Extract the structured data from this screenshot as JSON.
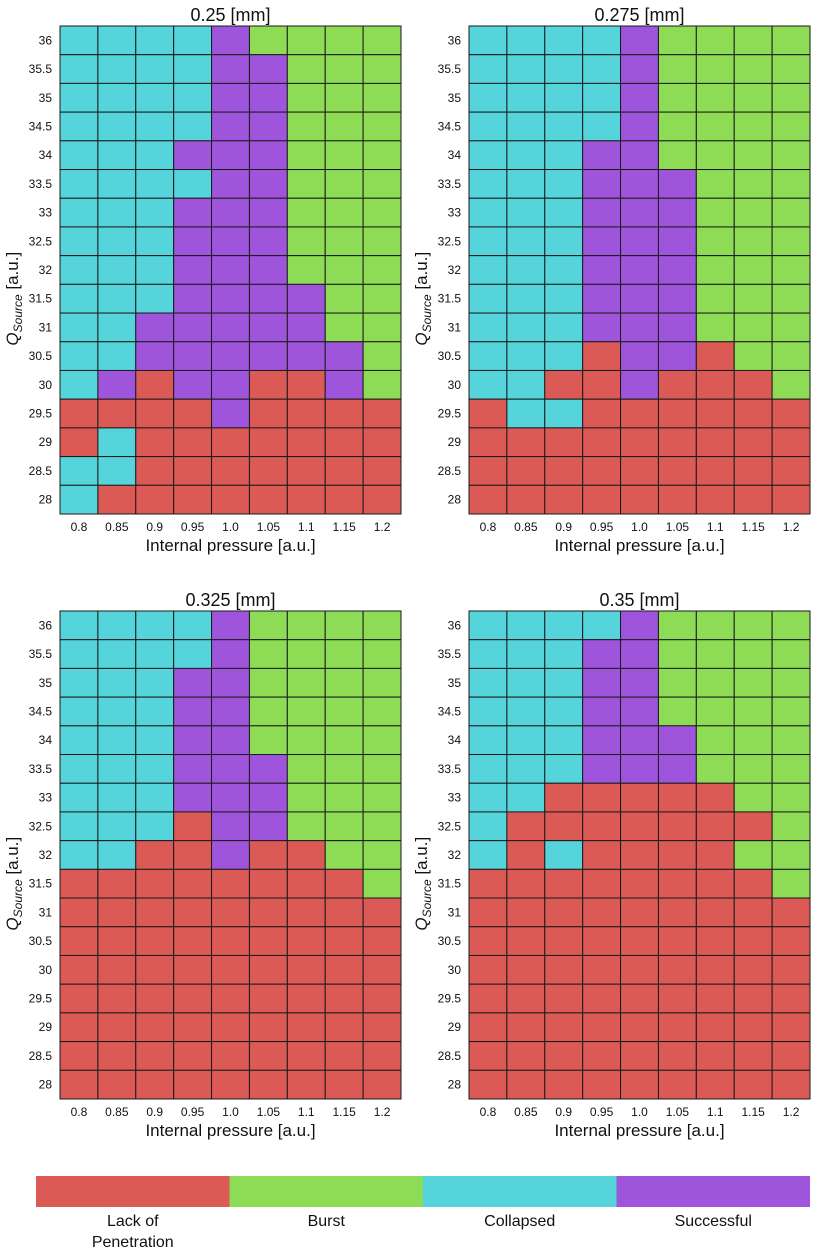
{
  "chart_data": [
    {
      "type": "heatmap",
      "title": "0.25 [mm]",
      "xlabel": "Internal pressure [a.u.]",
      "ylabel": "Q_Source [a.u.]",
      "ylabel_main": "Q",
      "ylabel_sub": "Source",
      "ylabel_unit": " [a.u.]",
      "x": [
        "0.8",
        "0.85",
        "0.9",
        "0.95",
        "1.0",
        "1.05",
        "1.1",
        "1.15",
        "1.2"
      ],
      "y": [
        "36",
        "35.5",
        "35",
        "34.5",
        "34",
        "33.5",
        "33",
        "32.5",
        "32",
        "31.5",
        "31",
        "30.5",
        "30",
        "29.5",
        "29",
        "28.5",
        "28"
      ],
      "z": [
        [
          "C",
          "C",
          "C",
          "C",
          "S",
          "B",
          "B",
          "B",
          "B"
        ],
        [
          "C",
          "C",
          "C",
          "C",
          "S",
          "S",
          "B",
          "B",
          "B"
        ],
        [
          "C",
          "C",
          "C",
          "C",
          "S",
          "S",
          "B",
          "B",
          "B"
        ],
        [
          "C",
          "C",
          "C",
          "C",
          "S",
          "S",
          "B",
          "B",
          "B"
        ],
        [
          "C",
          "C",
          "C",
          "S",
          "S",
          "S",
          "B",
          "B",
          "B"
        ],
        [
          "C",
          "C",
          "C",
          "C",
          "S",
          "S",
          "B",
          "B",
          "B"
        ],
        [
          "C",
          "C",
          "C",
          "S",
          "S",
          "S",
          "B",
          "B",
          "B"
        ],
        [
          "C",
          "C",
          "C",
          "S",
          "S",
          "S",
          "B",
          "B",
          "B"
        ],
        [
          "C",
          "C",
          "C",
          "S",
          "S",
          "S",
          "B",
          "B",
          "B"
        ],
        [
          "C",
          "C",
          "C",
          "S",
          "S",
          "S",
          "S",
          "B",
          "B"
        ],
        [
          "C",
          "C",
          "S",
          "S",
          "S",
          "S",
          "S",
          "B",
          "B"
        ],
        [
          "C",
          "C",
          "S",
          "S",
          "S",
          "S",
          "S",
          "S",
          "B"
        ],
        [
          "C",
          "S",
          "L",
          "S",
          "S",
          "L",
          "L",
          "S",
          "B"
        ],
        [
          "L",
          "L",
          "L",
          "L",
          "S",
          "L",
          "L",
          "L",
          "L"
        ],
        [
          "L",
          "C",
          "L",
          "L",
          "L",
          "L",
          "L",
          "L",
          "L"
        ],
        [
          "C",
          "C",
          "L",
          "L",
          "L",
          "L",
          "L",
          "L",
          "L"
        ],
        [
          "C",
          "L",
          "L",
          "L",
          "L",
          "L",
          "L",
          "L",
          "L"
        ]
      ]
    },
    {
      "type": "heatmap",
      "title": "0.275 [mm]",
      "xlabel": "Internal pressure [a.u.]",
      "ylabel": "Q_Source [a.u.]",
      "ylabel_main": "Q",
      "ylabel_sub": "Source",
      "ylabel_unit": " [a.u.]",
      "x": [
        "0.8",
        "0.85",
        "0.9",
        "0.95",
        "1.0",
        "1.05",
        "1.1",
        "1.15",
        "1.2"
      ],
      "y": [
        "36",
        "35.5",
        "35",
        "34.5",
        "34",
        "33.5",
        "33",
        "32.5",
        "32",
        "31.5",
        "31",
        "30.5",
        "30",
        "29.5",
        "29",
        "28.5",
        "28"
      ],
      "z": [
        [
          "C",
          "C",
          "C",
          "C",
          "S",
          "B",
          "B",
          "B",
          "B"
        ],
        [
          "C",
          "C",
          "C",
          "C",
          "S",
          "B",
          "B",
          "B",
          "B"
        ],
        [
          "C",
          "C",
          "C",
          "C",
          "S",
          "B",
          "B",
          "B",
          "B"
        ],
        [
          "C",
          "C",
          "C",
          "C",
          "S",
          "B",
          "B",
          "B",
          "B"
        ],
        [
          "C",
          "C",
          "C",
          "S",
          "S",
          "B",
          "B",
          "B",
          "B"
        ],
        [
          "C",
          "C",
          "C",
          "S",
          "S",
          "S",
          "B",
          "B",
          "B"
        ],
        [
          "C",
          "C",
          "C",
          "S",
          "S",
          "S",
          "B",
          "B",
          "B"
        ],
        [
          "C",
          "C",
          "C",
          "S",
          "S",
          "S",
          "B",
          "B",
          "B"
        ],
        [
          "C",
          "C",
          "C",
          "S",
          "S",
          "S",
          "B",
          "B",
          "B"
        ],
        [
          "C",
          "C",
          "C",
          "S",
          "S",
          "S",
          "B",
          "B",
          "B"
        ],
        [
          "C",
          "C",
          "C",
          "S",
          "S",
          "S",
          "B",
          "B",
          "B"
        ],
        [
          "C",
          "C",
          "C",
          "L",
          "S",
          "S",
          "L",
          "B",
          "B"
        ],
        [
          "C",
          "C",
          "L",
          "L",
          "S",
          "L",
          "L",
          "L",
          "B"
        ],
        [
          "L",
          "C",
          "C",
          "L",
          "L",
          "L",
          "L",
          "L",
          "L"
        ],
        [
          "L",
          "L",
          "L",
          "L",
          "L",
          "L",
          "L",
          "L",
          "L"
        ],
        [
          "L",
          "L",
          "L",
          "L",
          "L",
          "L",
          "L",
          "L",
          "L"
        ],
        [
          "L",
          "L",
          "L",
          "L",
          "L",
          "L",
          "L",
          "L",
          "L"
        ]
      ]
    },
    {
      "type": "heatmap",
      "title": "0.325 [mm]",
      "xlabel": "Internal pressure [a.u.]",
      "ylabel": "Q_Source [a.u.]",
      "ylabel_main": "Q",
      "ylabel_sub": "Source",
      "ylabel_unit": " [a.u.]",
      "x": [
        "0.8",
        "0.85",
        "0.9",
        "0.95",
        "1.0",
        "1.05",
        "1.1",
        "1.15",
        "1.2"
      ],
      "y": [
        "36",
        "35.5",
        "35",
        "34.5",
        "34",
        "33.5",
        "33",
        "32.5",
        "32",
        "31.5",
        "31",
        "30.5",
        "30",
        "29.5",
        "29",
        "28.5",
        "28"
      ],
      "z": [
        [
          "C",
          "C",
          "C",
          "C",
          "S",
          "B",
          "B",
          "B",
          "B"
        ],
        [
          "C",
          "C",
          "C",
          "C",
          "S",
          "B",
          "B",
          "B",
          "B"
        ],
        [
          "C",
          "C",
          "C",
          "S",
          "S",
          "B",
          "B",
          "B",
          "B"
        ],
        [
          "C",
          "C",
          "C",
          "S",
          "S",
          "B",
          "B",
          "B",
          "B"
        ],
        [
          "C",
          "C",
          "C",
          "S",
          "S",
          "B",
          "B",
          "B",
          "B"
        ],
        [
          "C",
          "C",
          "C",
          "S",
          "S",
          "S",
          "B",
          "B",
          "B"
        ],
        [
          "C",
          "C",
          "C",
          "S",
          "S",
          "S",
          "B",
          "B",
          "B"
        ],
        [
          "C",
          "C",
          "C",
          "L",
          "S",
          "S",
          "B",
          "B",
          "B"
        ],
        [
          "C",
          "C",
          "L",
          "L",
          "S",
          "L",
          "L",
          "B",
          "B"
        ],
        [
          "L",
          "L",
          "L",
          "L",
          "L",
          "L",
          "L",
          "L",
          "B"
        ],
        [
          "L",
          "L",
          "L",
          "L",
          "L",
          "L",
          "L",
          "L",
          "L"
        ],
        [
          "L",
          "L",
          "L",
          "L",
          "L",
          "L",
          "L",
          "L",
          "L"
        ],
        [
          "L",
          "L",
          "L",
          "L",
          "L",
          "L",
          "L",
          "L",
          "L"
        ],
        [
          "L",
          "L",
          "L",
          "L",
          "L",
          "L",
          "L",
          "L",
          "L"
        ],
        [
          "L",
          "L",
          "L",
          "L",
          "L",
          "L",
          "L",
          "L",
          "L"
        ],
        [
          "L",
          "L",
          "L",
          "L",
          "L",
          "L",
          "L",
          "L",
          "L"
        ],
        [
          "L",
          "L",
          "L",
          "L",
          "L",
          "L",
          "L",
          "L",
          "L"
        ]
      ]
    },
    {
      "type": "heatmap",
      "title": "0.35 [mm]",
      "xlabel": "Internal pressure [a.u.]",
      "ylabel": "Q_Source [a.u.]",
      "ylabel_main": "Q",
      "ylabel_sub": "Source",
      "ylabel_unit": " [a.u.]",
      "x": [
        "0.8",
        "0.85",
        "0.9",
        "0.95",
        "1.0",
        "1.05",
        "1.1",
        "1.15",
        "1.2"
      ],
      "y": [
        "36",
        "35.5",
        "35",
        "34.5",
        "34",
        "33.5",
        "33",
        "32.5",
        "32",
        "31.5",
        "31",
        "30.5",
        "30",
        "29.5",
        "29",
        "28.5",
        "28"
      ],
      "z": [
        [
          "C",
          "C",
          "C",
          "C",
          "S",
          "B",
          "B",
          "B",
          "B"
        ],
        [
          "C",
          "C",
          "C",
          "S",
          "S",
          "B",
          "B",
          "B",
          "B"
        ],
        [
          "C",
          "C",
          "C",
          "S",
          "S",
          "B",
          "B",
          "B",
          "B"
        ],
        [
          "C",
          "C",
          "C",
          "S",
          "S",
          "B",
          "B",
          "B",
          "B"
        ],
        [
          "C",
          "C",
          "C",
          "S",
          "S",
          "S",
          "B",
          "B",
          "B"
        ],
        [
          "C",
          "C",
          "C",
          "S",
          "S",
          "S",
          "B",
          "B",
          "B"
        ],
        [
          "C",
          "C",
          "L",
          "L",
          "L",
          "L",
          "L",
          "B",
          "B"
        ],
        [
          "C",
          "L",
          "L",
          "L",
          "L",
          "L",
          "L",
          "L",
          "B"
        ],
        [
          "C",
          "L",
          "C",
          "L",
          "L",
          "L",
          "L",
          "B",
          "B"
        ],
        [
          "L",
          "L",
          "L",
          "L",
          "L",
          "L",
          "L",
          "L",
          "B"
        ],
        [
          "L",
          "L",
          "L",
          "L",
          "L",
          "L",
          "L",
          "L",
          "L"
        ],
        [
          "L",
          "L",
          "L",
          "L",
          "L",
          "L",
          "L",
          "L",
          "L"
        ],
        [
          "L",
          "L",
          "L",
          "L",
          "L",
          "L",
          "L",
          "L",
          "L"
        ],
        [
          "L",
          "L",
          "L",
          "L",
          "L",
          "L",
          "L",
          "L",
          "L"
        ],
        [
          "L",
          "L",
          "L",
          "L",
          "L",
          "L",
          "L",
          "L",
          "L"
        ],
        [
          "L",
          "L",
          "L",
          "L",
          "L",
          "L",
          "L",
          "L",
          "L"
        ],
        [
          "L",
          "L",
          "L",
          "L",
          "L",
          "L",
          "L",
          "L",
          "L"
        ]
      ]
    }
  ],
  "legend": {
    "items": [
      {
        "key": "L",
        "label_line1": "Lack of",
        "label_line2": "Penetration",
        "color": "#db5a56"
      },
      {
        "key": "B",
        "label_line1": "Burst",
        "label_line2": "",
        "color": "#8edb55"
      },
      {
        "key": "C",
        "label_line1": "Collapsed",
        "label_line2": "",
        "color": "#55d4db"
      },
      {
        "key": "S",
        "label_line1": "Successful",
        "label_line2": "",
        "color": "#9f55db"
      }
    ]
  }
}
